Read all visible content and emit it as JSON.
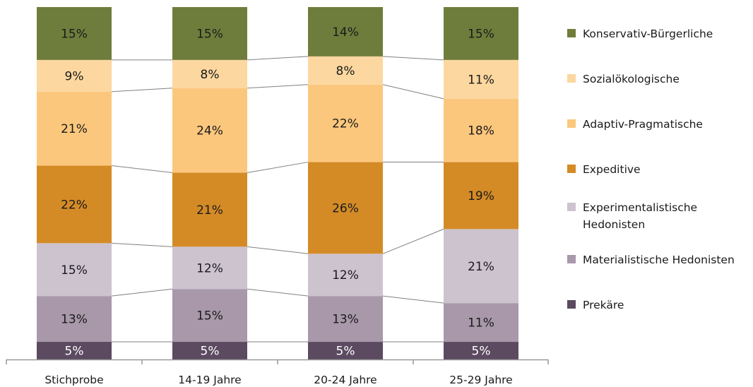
{
  "chart_data": {
    "type": "bar",
    "stacked": true,
    "normalized_percent": true,
    "categories": [
      "Stichprobe",
      "14-19 Jahre",
      "20-24 Jahre",
      "25-29 Jahre"
    ],
    "series": [
      {
        "name": "Prekäre",
        "color": "#5b4a60",
        "values": [
          5,
          5,
          5,
          5
        ],
        "labels": [
          "5%",
          "5%",
          "5%",
          "5%"
        ]
      },
      {
        "name": "Materialistische Hedonisten",
        "color": "#a898aa",
        "values": [
          13,
          15,
          13,
          11
        ],
        "labels": [
          "13%",
          "15%",
          "13%",
          "11%"
        ]
      },
      {
        "name": "Experimentalistische Hedonisten",
        "color": "#cdc3cf",
        "values": [
          15,
          12,
          12,
          21
        ],
        "labels": [
          "15%",
          "12%",
          "12%",
          "21%"
        ]
      },
      {
        "name": "Expeditive",
        "color": "#d48b26",
        "values": [
          22,
          21,
          26,
          19
        ],
        "labels": [
          "22%",
          "21%",
          "26%",
          "19%"
        ]
      },
      {
        "name": "Adaptiv-Pragmatische",
        "color": "#fbc77d",
        "values": [
          21,
          24,
          22,
          18
        ],
        "labels": [
          "21%",
          "24%",
          "22%",
          "18%"
        ]
      },
      {
        "name": "Sozialökologische",
        "color": "#fcd79f",
        "values": [
          9,
          8,
          8,
          11
        ],
        "labels": [
          "9%",
          "8%",
          "8%",
          "11%"
        ]
      },
      {
        "name": "Konservativ-Bürgerliche",
        "color": "#6f7d3c",
        "values": [
          15,
          15,
          14,
          15
        ],
        "labels": [
          "15%",
          "15%",
          "14%",
          "15%"
        ]
      }
    ],
    "legend_order": [
      "Konservativ-Bürgerliche",
      "Sozialökologische",
      "Adaptiv-Pragmatische",
      "Expeditive",
      "Experimentalistische Hedonisten",
      "Materialistische Hedonisten",
      "Prekäre"
    ],
    "legend_display": [
      "Konservativ-Bürgerliche",
      "Sozialökologische",
      "Adaptiv-Pragmatische",
      "Expeditive",
      "Experimentalistische\nHedonisten",
      "Materialistische Hedonisten",
      "Prekäre"
    ],
    "legend_position": "right",
    "series_lines": true,
    "grid": false,
    "axis_line_color": "#999999",
    "series_line_color": "#808080"
  }
}
